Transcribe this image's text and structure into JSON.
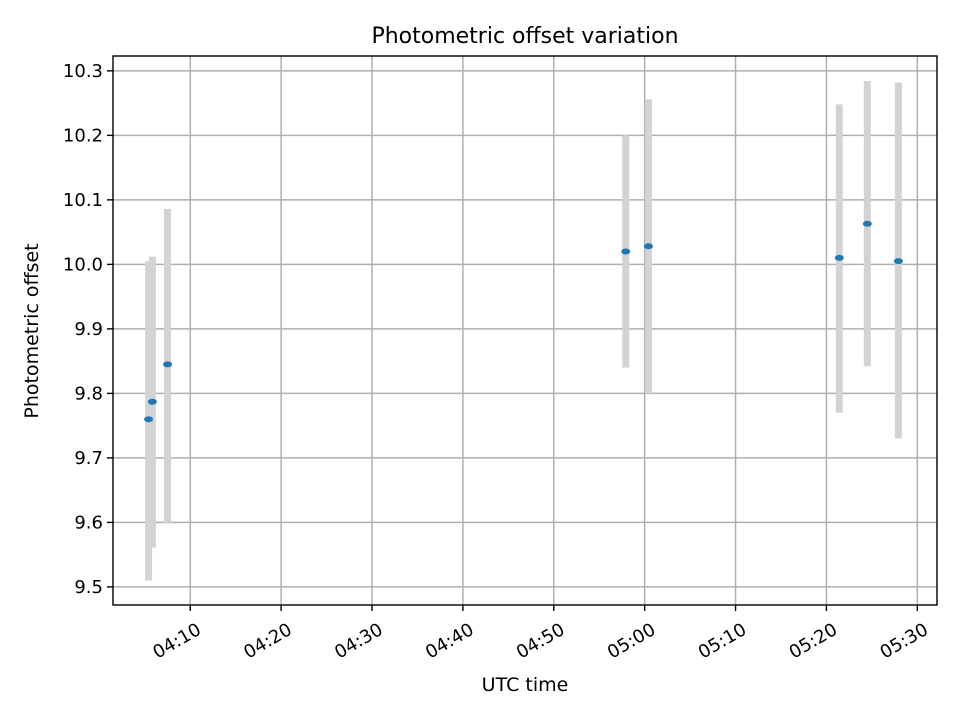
{
  "chart_data": {
    "type": "scatter",
    "title": "Photometric offset variation",
    "xlabel": "UTC time",
    "ylabel": "Photometric offset",
    "xlim": [
      "04:01:30",
      "05:32:10"
    ],
    "ylim": [
      9.472,
      10.323
    ],
    "grid": true,
    "x_ticks": [
      "04:10",
      "04:20",
      "04:30",
      "04:40",
      "04:50",
      "05:00",
      "05:10",
      "05:20",
      "05:30"
    ],
    "y_ticks": [
      "9.5",
      "9.6",
      "9.7",
      "9.8",
      "9.9",
      "10.0",
      "10.1",
      "10.2",
      "10.3"
    ],
    "series": [
      {
        "points": [
          {
            "time": "04:05:25",
            "y": 9.76,
            "y_low": 9.51,
            "y_high": 10.005
          },
          {
            "time": "04:05:50",
            "y": 9.787,
            "y_low": 9.561,
            "y_high": 10.012
          },
          {
            "time": "04:07:30",
            "y": 9.845,
            "y_low": 9.598,
            "y_high": 10.086
          },
          {
            "time": "04:57:55",
            "y": 10.02,
            "y_low": 9.84,
            "y_high": 10.2
          },
          {
            "time": "05:00:25",
            "y": 10.028,
            "y_low": 9.8,
            "y_high": 10.256
          },
          {
            "time": "05:21:25",
            "y": 10.01,
            "y_low": 9.77,
            "y_high": 10.248
          },
          {
            "time": "05:24:30",
            "y": 10.063,
            "y_low": 9.842,
            "y_high": 10.284
          },
          {
            "time": "05:27:55",
            "y": 10.005,
            "y_low": 9.73,
            "y_high": 10.282
          }
        ]
      }
    ],
    "colors": {
      "point": "#1f77b4",
      "error_bar": "#d3d3d3",
      "grid": "#b0b0b0"
    }
  }
}
